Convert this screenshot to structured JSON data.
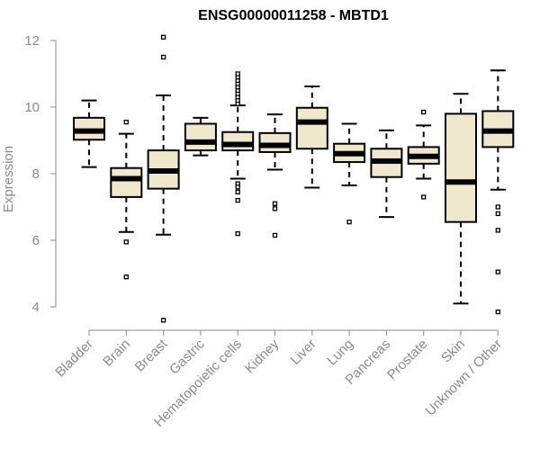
{
  "chart_data": {
    "type": "boxplot",
    "title": "ENSG00000011258 - MBTD1",
    "xlabel": "",
    "ylabel": "Expression",
    "ylim": [
      3.4,
      12.3
    ],
    "yticks": [
      4,
      6,
      8,
      10,
      12
    ],
    "grid": false,
    "legend": "none",
    "categories": [
      "Bladder",
      "Brain",
      "Breast",
      "Gastric",
      "Hematopoietic cells",
      "Kidney",
      "Liver",
      "Lung",
      "Pancreas",
      "Prostate",
      "Skin",
      "Unknown / Other"
    ],
    "boxes": [
      {
        "whisker_low": 8.2,
        "q1": 9.02,
        "median": 9.28,
        "q3": 9.68,
        "whisker_high": 10.2,
        "outliers": []
      },
      {
        "whisker_low": 6.25,
        "q1": 7.3,
        "median": 7.85,
        "q3": 8.17,
        "whisker_high": 9.2,
        "outliers": [
          5.95,
          4.9,
          9.55
        ]
      },
      {
        "whisker_low": 6.17,
        "q1": 7.55,
        "median": 8.08,
        "q3": 8.7,
        "whisker_high": 10.35,
        "outliers": [
          11.5,
          12.1,
          3.6
        ]
      },
      {
        "whisker_low": 8.55,
        "q1": 8.7,
        "median": 8.95,
        "q3": 9.5,
        "whisker_high": 9.68,
        "outliers": []
      },
      {
        "whisker_low": 7.85,
        "q1": 8.7,
        "median": 8.88,
        "q3": 9.25,
        "whisker_high": 10.05,
        "outliers": [
          10.1,
          10.2,
          10.3,
          10.4,
          10.5,
          10.6,
          10.7,
          10.8,
          10.9,
          11.0,
          7.7,
          7.6,
          7.45,
          7.2,
          6.2
        ]
      },
      {
        "whisker_low": 8.12,
        "q1": 8.65,
        "median": 8.85,
        "q3": 9.22,
        "whisker_high": 9.78,
        "outliers": [
          7.1,
          6.95,
          6.15
        ]
      },
      {
        "whisker_low": 7.58,
        "q1": 8.75,
        "median": 9.55,
        "q3": 9.98,
        "whisker_high": 10.62,
        "outliers": []
      },
      {
        "whisker_low": 7.65,
        "q1": 8.35,
        "median": 8.6,
        "q3": 8.9,
        "whisker_high": 9.5,
        "outliers": [
          6.55
        ]
      },
      {
        "whisker_low": 6.7,
        "q1": 7.9,
        "median": 8.38,
        "q3": 8.75,
        "whisker_high": 9.3,
        "outliers": []
      },
      {
        "whisker_low": 7.85,
        "q1": 8.3,
        "median": 8.52,
        "q3": 8.8,
        "whisker_high": 9.45,
        "outliers": [
          9.85,
          7.3
        ]
      },
      {
        "whisker_low": 4.1,
        "q1": 6.55,
        "median": 7.75,
        "q3": 9.8,
        "whisker_high": 10.4,
        "outliers": []
      },
      {
        "whisker_low": 7.52,
        "q1": 8.8,
        "median": 9.28,
        "q3": 9.88,
        "whisker_high": 11.1,
        "outliers": [
          7.0,
          6.8,
          6.3,
          5.05,
          3.85
        ]
      }
    ],
    "colors": {
      "box_fill": "#efe8cc",
      "box_stroke": "#000000",
      "axis": "#8a8a8a",
      "text": "#8a8a8a",
      "title": "#000000"
    }
  }
}
